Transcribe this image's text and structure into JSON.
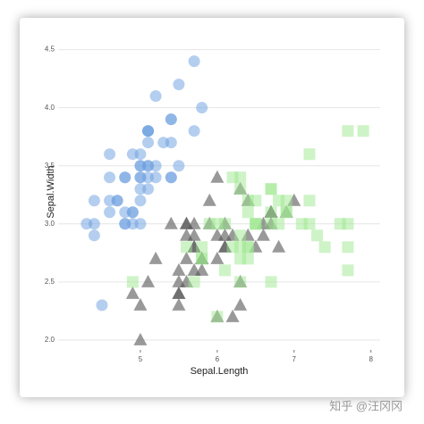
{
  "chart_data": {
    "type": "scatter",
    "x_label": "Sepal.Length",
    "y_label": "Sepal.Width",
    "xlim": [
      3.93,
      8.12
    ],
    "ylim": [
      1.93,
      4.62
    ],
    "xticks": [
      5,
      6,
      7,
      8
    ],
    "yticks": [
      {
        "value": 2.0,
        "label": "2.0"
      },
      {
        "value": 2.5,
        "label": "2.5"
      },
      {
        "value": 3.0,
        "label": "3.0"
      },
      {
        "value": 3.5,
        "label": "3.5"
      },
      {
        "value": 4.0,
        "label": "4.0"
      },
      {
        "value": 4.5,
        "label": "4.5"
      }
    ],
    "grid": true,
    "series": [
      {
        "shape": "circle",
        "color": "#6a9ee0",
        "x": [
          5.1,
          4.9,
          4.7,
          4.6,
          5.0,
          5.4,
          4.6,
          5.0,
          4.4,
          4.9,
          5.4,
          4.8,
          4.8,
          4.3,
          5.8,
          5.7,
          5.4,
          5.1,
          5.7,
          5.1,
          5.4,
          5.1,
          4.6,
          5.1,
          4.8,
          5.0,
          5.0,
          5.2,
          5.2,
          4.7,
          4.8,
          5.4,
          5.2,
          5.5,
          4.9,
          5.0,
          5.5,
          4.9,
          4.4,
          5.1,
          5.0,
          4.5,
          4.4,
          5.0,
          5.1,
          4.8,
          5.1,
          4.6,
          5.3,
          5.0
        ],
        "values": [
          3.5,
          3.0,
          3.2,
          3.1,
          3.6,
          3.9,
          3.4,
          3.4,
          2.9,
          3.1,
          3.7,
          3.4,
          3.0,
          3.0,
          4.0,
          4.4,
          3.9,
          3.5,
          3.8,
          3.8,
          3.4,
          3.7,
          3.6,
          3.3,
          3.4,
          3.0,
          3.4,
          3.5,
          3.4,
          3.2,
          3.1,
          3.4,
          4.1,
          4.2,
          3.1,
          3.2,
          3.5,
          3.6,
          3.0,
          3.4,
          3.5,
          2.3,
          3.2,
          3.5,
          3.8,
          3.0,
          3.8,
          3.2,
          3.7,
          3.3
        ]
      },
      {
        "shape": "triangle",
        "color": "#555555",
        "x": [
          7.0,
          6.4,
          6.9,
          5.5,
          6.5,
          5.7,
          6.3,
          4.9,
          6.6,
          5.2,
          5.0,
          5.9,
          6.0,
          6.1,
          5.6,
          6.7,
          5.6,
          5.8,
          6.2,
          5.6,
          5.9,
          6.1,
          6.3,
          6.1,
          6.4,
          6.6,
          6.8,
          6.7,
          6.0,
          5.7,
          5.5,
          5.5,
          5.8,
          6.0,
          5.4,
          6.0,
          6.7,
          6.3,
          5.6,
          5.5,
          5.5,
          6.1,
          5.8,
          5.0,
          5.6,
          5.7,
          5.7,
          6.2,
          5.1,
          5.7
        ],
        "values": [
          3.2,
          3.2,
          3.1,
          2.3,
          2.8,
          2.8,
          3.3,
          2.4,
          2.9,
          2.7,
          2.0,
          3.0,
          2.2,
          2.9,
          2.9,
          3.1,
          3.0,
          2.7,
          2.2,
          2.5,
          3.2,
          2.8,
          2.5,
          2.8,
          2.9,
          3.0,
          2.8,
          3.0,
          2.9,
          2.6,
          2.4,
          2.4,
          2.7,
          2.7,
          3.0,
          3.4,
          3.1,
          2.3,
          3.0,
          2.5,
          2.6,
          3.0,
          2.6,
          2.3,
          2.7,
          3.0,
          2.9,
          2.9,
          2.5,
          2.8
        ]
      },
      {
        "shape": "square",
        "color": "#9ee890",
        "x": [
          6.3,
          5.8,
          7.1,
          6.3,
          6.5,
          7.6,
          4.9,
          7.3,
          6.7,
          7.2,
          6.5,
          6.4,
          6.8,
          5.7,
          5.8,
          6.4,
          6.5,
          7.7,
          7.7,
          6.0,
          6.9,
          5.6,
          7.7,
          6.3,
          6.7,
          7.2,
          6.2,
          6.1,
          6.4,
          7.2,
          7.4,
          7.9,
          6.4,
          6.3,
          6.1,
          7.7,
          6.3,
          6.4,
          6.0,
          6.9,
          6.7,
          6.9,
          5.8,
          6.8,
          6.7,
          6.7,
          6.3,
          6.5,
          6.2,
          5.9
        ],
        "values": [
          3.3,
          2.7,
          3.0,
          2.9,
          3.0,
          3.0,
          2.5,
          2.9,
          2.5,
          3.6,
          3.2,
          2.7,
          3.0,
          2.5,
          2.8,
          3.2,
          3.0,
          3.8,
          2.6,
          2.2,
          3.2,
          2.8,
          2.8,
          2.7,
          3.3,
          3.2,
          2.8,
          3.0,
          2.8,
          3.0,
          2.8,
          3.8,
          2.8,
          2.8,
          2.6,
          3.0,
          3.4,
          3.1,
          3.0,
          3.1,
          3.1,
          3.1,
          2.7,
          3.2,
          3.3,
          3.0,
          2.5,
          3.0,
          3.4,
          3.0
        ]
      }
    ]
  },
  "watermark": "知乎 @汪冈冈"
}
